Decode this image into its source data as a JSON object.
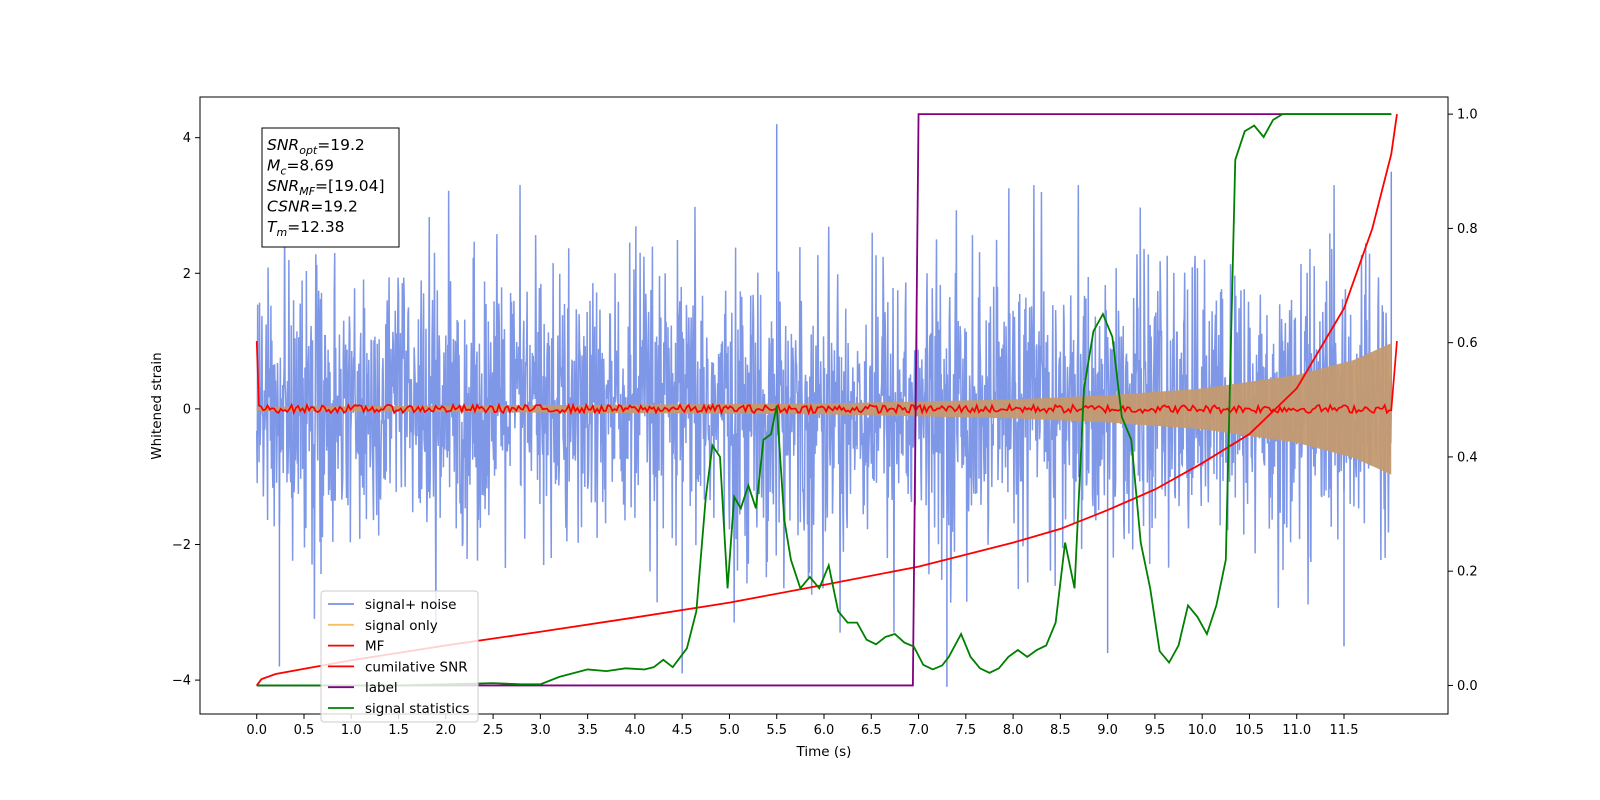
{
  "chart_data": {
    "type": "line",
    "xlabel": "Time (s)",
    "ylabel": "Whitened strain",
    "xlim": [
      -0.6,
      12.6
    ],
    "ylim": [
      -4.5,
      4.6
    ],
    "ylim_right": [
      -0.05,
      1.03
    ],
    "xticks": [
      "0.0",
      "0.5",
      "1.0",
      "1.5",
      "2.0",
      "2.5",
      "3.0",
      "3.5",
      "4.0",
      "4.5",
      "5.0",
      "5.5",
      "6.0",
      "6.5",
      "7.0",
      "7.5",
      "8.0",
      "8.5",
      "9.0",
      "9.5",
      "10.0",
      "10.5",
      "11.0",
      "11.5"
    ],
    "yticks_left": [
      "-4",
      "-2",
      "0",
      "2",
      "4"
    ],
    "yticks_right": [
      "0.0",
      "0.2",
      "0.4",
      "0.6",
      "0.8",
      "1.0"
    ],
    "grid": false,
    "legend_position": "lower-left",
    "info_box": [
      {
        "sym": "SNR",
        "sub": "opt",
        "val": "=19.2"
      },
      {
        "sym": "M",
        "sub": "c",
        "val": "=8.69"
      },
      {
        "sym": "SNR",
        "sub": "MF",
        "val": "=[19.04]"
      },
      {
        "sym": "CSNR",
        "sub": "",
        "val": "=19.2"
      },
      {
        "sym": "T",
        "sub": "m",
        "val": "=12.38"
      }
    ],
    "series": [
      {
        "name": "signal+ noise",
        "color": "#7891e6",
        "axis": "left",
        "style": "noise band",
        "x_range": [
          0,
          12
        ],
        "amplitude_approx": 2.5,
        "spikes": [
          [
            0.24,
            -3.8
          ],
          [
            4.5,
            -3.9
          ],
          [
            5.5,
            4.2
          ],
          [
            7.3,
            -4.1
          ],
          [
            9.0,
            -3.6
          ],
          [
            11.5,
            -3.5
          ],
          [
            12.0,
            3.5
          ]
        ]
      },
      {
        "name": "signal only",
        "color": "#f5c060",
        "axis": "left",
        "style": "chirp envelope",
        "envelope_points": [
          [
            0,
            0.03
          ],
          [
            6,
            0.08
          ],
          [
            8,
            0.14
          ],
          [
            9,
            0.2
          ],
          [
            10,
            0.3
          ],
          [
            11,
            0.5
          ],
          [
            11.6,
            0.72
          ],
          [
            12,
            0.97
          ]
        ]
      },
      {
        "name": "MF",
        "color": "#ff0000",
        "axis": "left",
        "style": "noisy around zero",
        "start_value": 1.0,
        "end_value": 1.0,
        "jitter": 0.06
      },
      {
        "name": "cumilative SNR",
        "color": "#ff0000",
        "axis": "right",
        "points": [
          [
            0,
            0.0
          ],
          [
            0.05,
            0.011
          ],
          [
            0.2,
            0.02
          ],
          [
            1.0,
            0.044
          ],
          [
            2.0,
            0.07
          ],
          [
            3.0,
            0.094
          ],
          [
            4.0,
            0.119
          ],
          [
            5.0,
            0.145
          ],
          [
            6.0,
            0.176
          ],
          [
            7.0,
            0.208
          ],
          [
            8.0,
            0.25
          ],
          [
            8.5,
            0.274
          ],
          [
            9.0,
            0.307
          ],
          [
            9.5,
            0.343
          ],
          [
            10.0,
            0.389
          ],
          [
            10.5,
            0.44
          ],
          [
            11.0,
            0.52
          ],
          [
            11.5,
            0.66
          ],
          [
            11.8,
            0.8
          ],
          [
            12.0,
            0.93
          ],
          [
            12.06,
            1.0
          ]
        ]
      },
      {
        "name": "label",
        "color": "#800080",
        "axis": "right",
        "points": [
          [
            0,
            0.0
          ],
          [
            6.94,
            0.0
          ],
          [
            7.0,
            1.0
          ],
          [
            12.0,
            1.0
          ]
        ]
      },
      {
        "name": "signal statistics",
        "color": "#008000",
        "axis": "right",
        "points": [
          [
            0,
            0.0
          ],
          [
            0.5,
            0.0
          ],
          [
            1.0,
            0.0
          ],
          [
            1.5,
            0.0
          ],
          [
            2.0,
            0.002
          ],
          [
            2.5,
            0.004
          ],
          [
            2.8,
            0.002
          ],
          [
            3.0,
            0.002
          ],
          [
            3.2,
            0.015
          ],
          [
            3.5,
            0.028
          ],
          [
            3.7,
            0.025
          ],
          [
            3.9,
            0.03
          ],
          [
            4.1,
            0.028
          ],
          [
            4.2,
            0.032
          ],
          [
            4.3,
            0.045
          ],
          [
            4.4,
            0.032
          ],
          [
            4.55,
            0.065
          ],
          [
            4.65,
            0.13
          ],
          [
            4.75,
            0.33
          ],
          [
            4.82,
            0.42
          ],
          [
            4.9,
            0.4
          ],
          [
            4.98,
            0.17
          ],
          [
            5.05,
            0.33
          ],
          [
            5.12,
            0.31
          ],
          [
            5.2,
            0.35
          ],
          [
            5.28,
            0.31
          ],
          [
            5.36,
            0.43
          ],
          [
            5.44,
            0.44
          ],
          [
            5.5,
            0.49
          ],
          [
            5.58,
            0.29
          ],
          [
            5.65,
            0.22
          ],
          [
            5.75,
            0.17
          ],
          [
            5.85,
            0.19
          ],
          [
            5.95,
            0.17
          ],
          [
            6.05,
            0.21
          ],
          [
            6.15,
            0.13
          ],
          [
            6.25,
            0.11
          ],
          [
            6.35,
            0.11
          ],
          [
            6.45,
            0.08
          ],
          [
            6.55,
            0.072
          ],
          [
            6.65,
            0.085
          ],
          [
            6.75,
            0.09
          ],
          [
            6.85,
            0.075
          ],
          [
            6.95,
            0.068
          ],
          [
            7.05,
            0.036
          ],
          [
            7.15,
            0.028
          ],
          [
            7.25,
            0.035
          ],
          [
            7.32,
            0.05
          ],
          [
            7.45,
            0.09
          ],
          [
            7.55,
            0.05
          ],
          [
            7.65,
            0.03
          ],
          [
            7.75,
            0.022
          ],
          [
            7.85,
            0.03
          ],
          [
            7.95,
            0.05
          ],
          [
            8.05,
            0.062
          ],
          [
            8.15,
            0.05
          ],
          [
            8.25,
            0.062
          ],
          [
            8.35,
            0.07
          ],
          [
            8.45,
            0.11
          ],
          [
            8.55,
            0.25
          ],
          [
            8.65,
            0.17
          ],
          [
            8.75,
            0.52
          ],
          [
            8.85,
            0.62
          ],
          [
            8.95,
            0.65
          ],
          [
            9.05,
            0.61
          ],
          [
            9.15,
            0.47
          ],
          [
            9.25,
            0.43
          ],
          [
            9.35,
            0.25
          ],
          [
            9.45,
            0.17
          ],
          [
            9.55,
            0.06
          ],
          [
            9.65,
            0.04
          ],
          [
            9.75,
            0.07
          ],
          [
            9.85,
            0.14
          ],
          [
            9.95,
            0.12
          ],
          [
            10.05,
            0.09
          ],
          [
            10.15,
            0.14
          ],
          [
            10.25,
            0.22
          ],
          [
            10.35,
            0.92
          ],
          [
            10.45,
            0.97
          ],
          [
            10.55,
            0.98
          ],
          [
            10.65,
            0.96
          ],
          [
            10.75,
            0.99
          ],
          [
            10.85,
            1.0
          ],
          [
            11.0,
            1.0
          ],
          [
            11.5,
            1.0
          ],
          [
            12.0,
            1.0
          ]
        ]
      }
    ]
  }
}
